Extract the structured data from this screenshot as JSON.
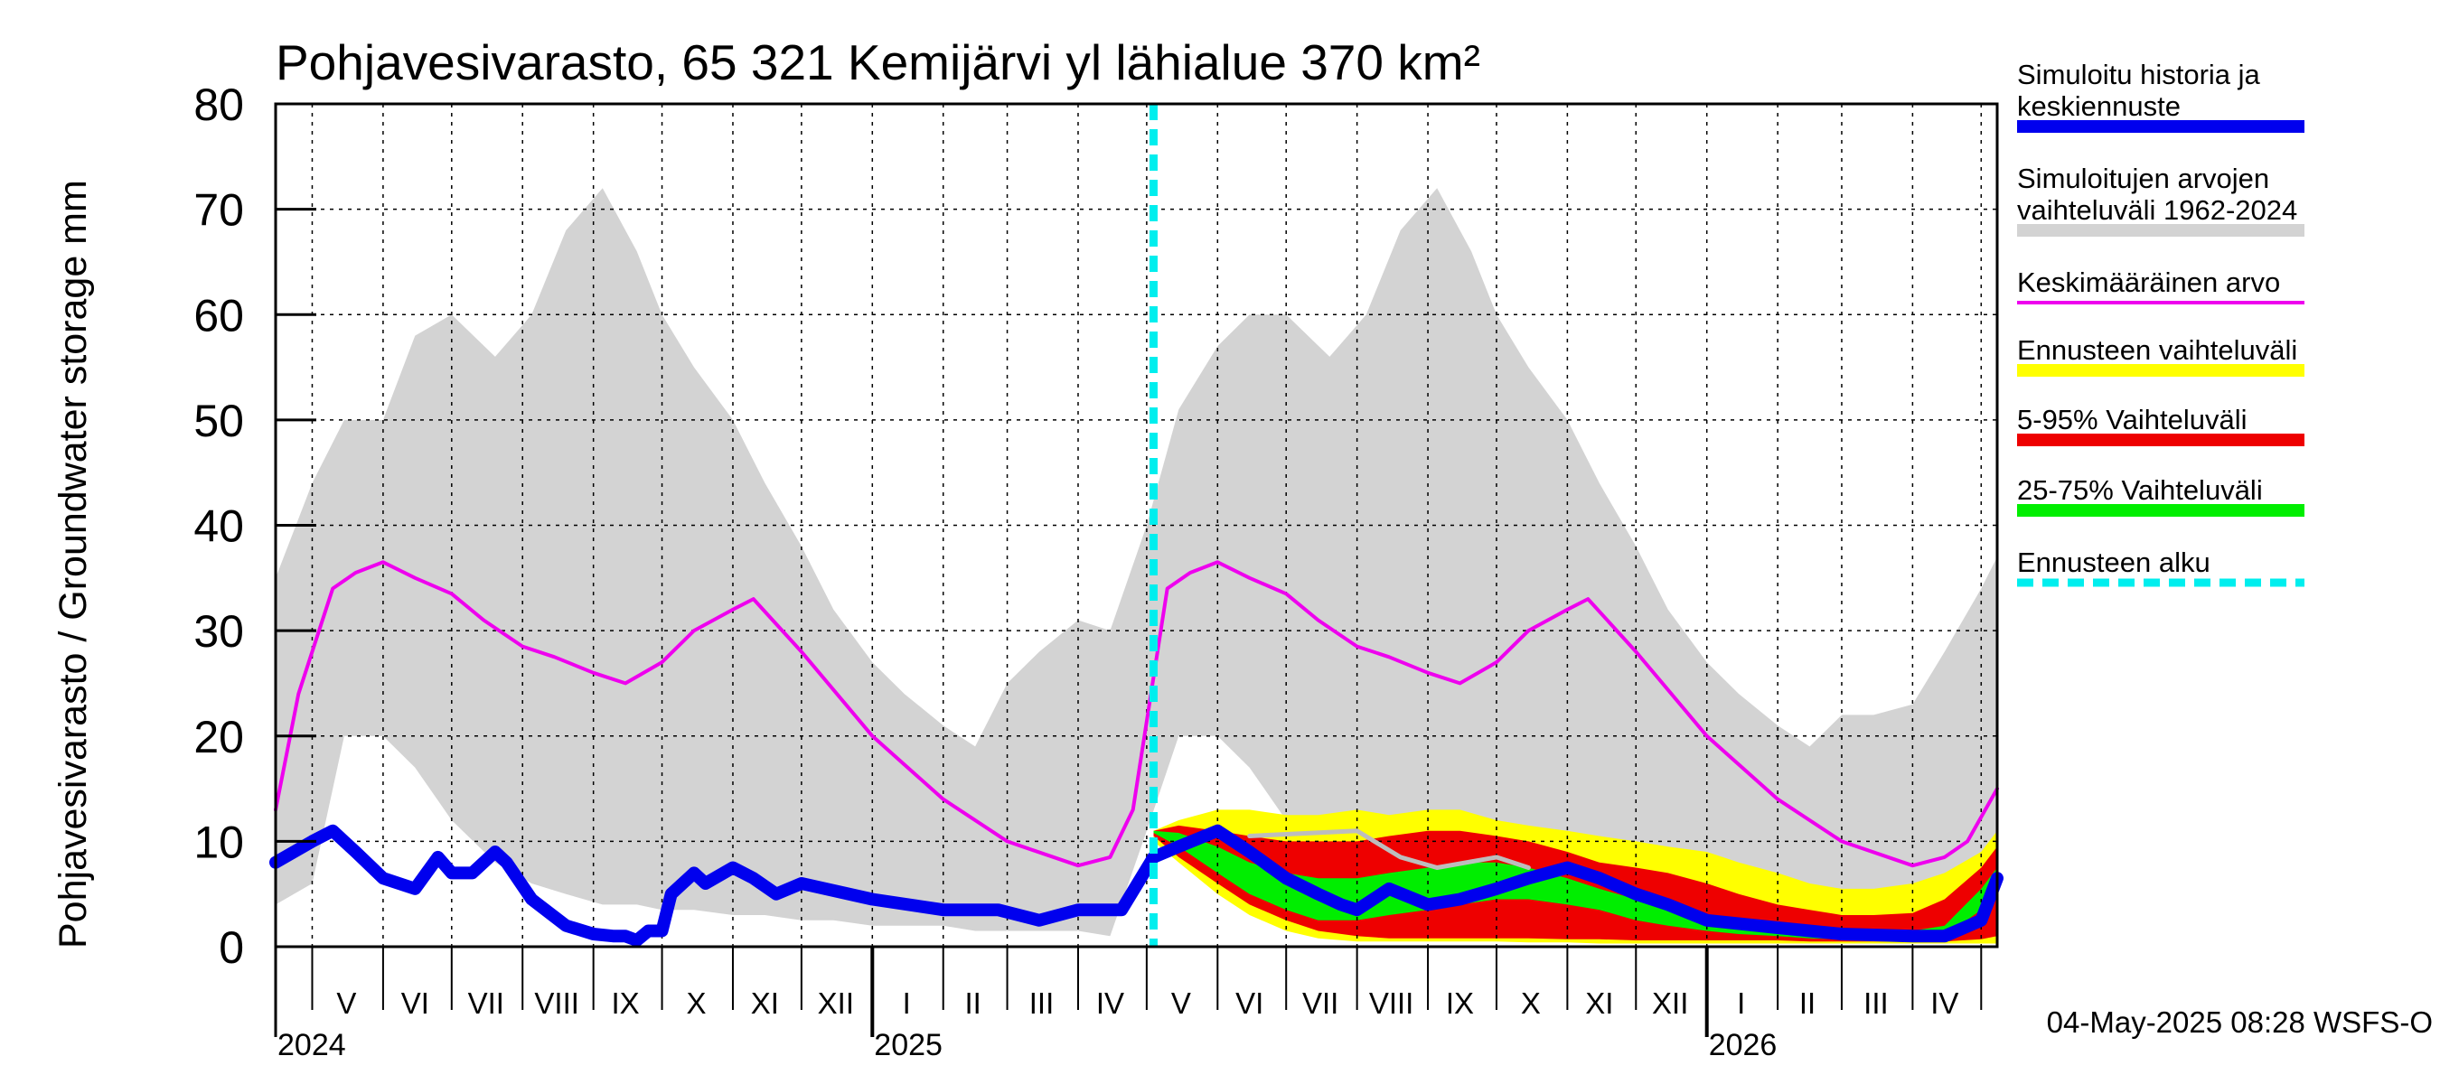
{
  "chart_data": {
    "type": "area",
    "title": "Pohjavesivarasto, 65 321 Kemijärvi yl lähialue 370 km²",
    "ylabel": "Pohjavesivarasto / Groundwater storage   mm",
    "ylim": [
      0,
      80
    ],
    "y_ticks": [
      "0",
      "10",
      "20",
      "30",
      "40",
      "50",
      "60",
      "70",
      "80"
    ],
    "grid": true,
    "legend_position": "right",
    "x_range": [
      "2024-04-15",
      "2026-05-08"
    ],
    "month_labels": [
      {
        "label": "V",
        "date": "2024-05-16"
      },
      {
        "label": "VI",
        "date": "2024-06-15"
      },
      {
        "label": "VII",
        "date": "2024-07-16"
      },
      {
        "label": "VIII",
        "date": "2024-08-16"
      },
      {
        "label": "IX",
        "date": "2024-09-15"
      },
      {
        "label": "X",
        "date": "2024-10-16"
      },
      {
        "label": "XI",
        "date": "2024-11-15"
      },
      {
        "label": "XII",
        "date": "2024-12-16"
      },
      {
        "label": "I",
        "date": "2025-01-16"
      },
      {
        "label": "II",
        "date": "2025-02-14"
      },
      {
        "label": "III",
        "date": "2025-03-16"
      },
      {
        "label": "IV",
        "date": "2025-04-15"
      },
      {
        "label": "V",
        "date": "2025-05-16"
      },
      {
        "label": "VI",
        "date": "2025-06-15"
      },
      {
        "label": "VII",
        "date": "2025-07-16"
      },
      {
        "label": "VIII",
        "date": "2025-08-16"
      },
      {
        "label": "IX",
        "date": "2025-09-15"
      },
      {
        "label": "X",
        "date": "2025-10-16"
      },
      {
        "label": "XI",
        "date": "2025-11-15"
      },
      {
        "label": "XII",
        "date": "2025-12-16"
      },
      {
        "label": "I",
        "date": "2026-01-16"
      },
      {
        "label": "II",
        "date": "2026-02-14"
      },
      {
        "label": "III",
        "date": "2026-03-16"
      },
      {
        "label": "IV",
        "date": "2026-04-15"
      }
    ],
    "year_labels": [
      {
        "label": "2024",
        "date": "2024-04-15"
      },
      {
        "label": "2025",
        "date": "2025-01-01"
      },
      {
        "label": "2026",
        "date": "2026-01-01"
      }
    ],
    "forecast_start": "2025-05-04",
    "legend": [
      {
        "label": "Simuloitu historia ja\nkeskiennuste",
        "color": "#0000ee",
        "style": "thick"
      },
      {
        "label": "Simuloitujen arvojen\nvaihteluväli 1962-2024",
        "color": "#d3d3d3",
        "style": "thick"
      },
      {
        "label": "Keskimääräinen arvo",
        "color": "#ee00ee",
        "style": "thin"
      },
      {
        "label": "Ennusteen vaihteluväli",
        "color": "#ffff00",
        "style": "thick"
      },
      {
        "label": "5-95% Vaihteluväli",
        "color": "#ee0000",
        "style": "thick"
      },
      {
        "label": "25-75% Vaihteluväli",
        "color": "#00ee00",
        "style": "thick"
      },
      {
        "label": "Ennusteen alku",
        "color": "#00eeee",
        "style": "dashed"
      }
    ],
    "series": [
      {
        "name": "Simuloitujen arvojen vaihteluväli 1962-2024",
        "kind": "band",
        "color": "#d3d3d3",
        "x": [
          "2024-04-15",
          "2024-05-01",
          "2024-05-15",
          "2024-06-01",
          "2024-06-15",
          "2024-07-01",
          "2024-07-20",
          "2024-08-05",
          "2024-08-20",
          "2024-09-05",
          "2024-09-20",
          "2024-10-01",
          "2024-10-15",
          "2024-11-01",
          "2024-11-15",
          "2024-12-01",
          "2024-12-15",
          "2025-01-01",
          "2025-01-15",
          "2025-02-01",
          "2025-02-15",
          "2025-03-01",
          "2025-03-15",
          "2025-04-01",
          "2025-04-15",
          "2025-05-01",
          "2025-05-15",
          "2025-06-01",
          "2025-06-15",
          "2025-07-01",
          "2025-07-20",
          "2025-08-05",
          "2025-08-20",
          "2025-09-05",
          "2025-09-20",
          "2025-10-01",
          "2025-10-15",
          "2025-11-01",
          "2025-11-15",
          "2025-12-01",
          "2025-12-15",
          "2026-01-01",
          "2026-01-15",
          "2026-02-01",
          "2026-02-15",
          "2026-03-01",
          "2026-03-15",
          "2026-04-01",
          "2026-04-15",
          "2026-05-01",
          "2026-05-08"
        ],
        "low": [
          4,
          6,
          20,
          20,
          17,
          12,
          8,
          6,
          5,
          4,
          4,
          3.5,
          3.5,
          3,
          3,
          2.5,
          2.5,
          2,
          2,
          2,
          1.5,
          1.5,
          1.5,
          1.5,
          1,
          11,
          20,
          20,
          17,
          12,
          8,
          6,
          5,
          4,
          4,
          3.5,
          3.5,
          3,
          3,
          2.5,
          2.5,
          2,
          2,
          2,
          1.5,
          1.5,
          1.5,
          1.5,
          1,
          2,
          2
        ],
        "high": [
          35,
          44,
          50,
          50,
          58,
          60,
          56,
          60,
          68,
          72,
          66,
          60,
          55,
          50,
          44,
          38,
          32,
          27,
          24,
          21,
          19,
          25,
          28,
          31,
          30,
          40,
          51,
          57,
          60,
          60,
          56,
          60,
          68,
          72,
          66,
          60,
          55,
          50,
          44,
          38,
          32,
          27,
          24,
          21,
          19,
          22,
          22,
          23,
          28,
          34,
          37
        ]
      },
      {
        "name": "Ennusteen vaihteluväli",
        "kind": "band",
        "color": "#ffff00",
        "x": [
          "2025-05-04",
          "2025-05-15",
          "2025-06-01",
          "2025-06-15",
          "2025-07-01",
          "2025-07-15",
          "2025-08-01",
          "2025-08-15",
          "2025-09-01",
          "2025-09-15",
          "2025-10-01",
          "2025-10-15",
          "2025-11-01",
          "2025-11-15",
          "2025-12-01",
          "2025-12-15",
          "2026-01-01",
          "2026-01-15",
          "2026-02-01",
          "2026-02-15",
          "2026-03-01",
          "2026-03-15",
          "2026-04-01",
          "2026-04-15",
          "2026-05-01",
          "2026-05-08"
        ],
        "low": [
          10,
          8,
          5,
          3,
          1.5,
          0.8,
          0.5,
          0.5,
          0.5,
          0.5,
          0.5,
          0.4,
          0.4,
          0.3,
          0.3,
          0.3,
          0.3,
          0.3,
          0.3,
          0.3,
          0.3,
          0.3,
          0.3,
          0.3,
          0.3,
          0.3
        ],
        "high": [
          11,
          12,
          13,
          13,
          12.5,
          12.5,
          13,
          12.5,
          13,
          13,
          12,
          11.5,
          11,
          10.5,
          10,
          9.5,
          9,
          8,
          7,
          6,
          5.5,
          5.5,
          6,
          7,
          9,
          11
        ]
      },
      {
        "name": "5-95% Vaihteluväli",
        "kind": "band",
        "color": "#ee0000",
        "x": [
          "2025-05-04",
          "2025-05-15",
          "2025-06-01",
          "2025-06-15",
          "2025-07-01",
          "2025-07-15",
          "2025-08-01",
          "2025-08-15",
          "2025-09-01",
          "2025-09-15",
          "2025-10-01",
          "2025-10-15",
          "2025-11-01",
          "2025-11-15",
          "2025-12-01",
          "2025-12-15",
          "2026-01-01",
          "2026-01-15",
          "2026-02-01",
          "2026-02-15",
          "2026-03-01",
          "2026-03-15",
          "2026-04-01",
          "2026-04-15",
          "2026-05-01",
          "2026-05-08"
        ],
        "low": [
          10.5,
          8.5,
          6,
          4,
          2.5,
          1.5,
          1,
          0.8,
          0.8,
          0.8,
          0.8,
          0.8,
          0.7,
          0.7,
          0.6,
          0.6,
          0.6,
          0.6,
          0.6,
          0.5,
          0.5,
          0.5,
          0.5,
          0.5,
          0.7,
          1
        ],
        "high": [
          11,
          11.5,
          11,
          10.5,
          10,
          10,
          10,
          10.5,
          11,
          11,
          10.5,
          10,
          9,
          8,
          7.5,
          7,
          6,
          5,
          4,
          3.5,
          3,
          3,
          3.2,
          4.5,
          7.5,
          9.5
        ]
      },
      {
        "name": "25-75% Vaihteluväli",
        "kind": "band",
        "color": "#00ee00",
        "x": [
          "2025-05-04",
          "2025-05-15",
          "2025-06-01",
          "2025-06-15",
          "2025-07-01",
          "2025-07-15",
          "2025-08-01",
          "2025-08-15",
          "2025-09-01",
          "2025-09-15",
          "2025-10-01",
          "2025-10-15",
          "2025-11-01",
          "2025-11-15",
          "2025-12-01",
          "2025-12-15",
          "2026-01-01",
          "2026-01-15",
          "2026-02-01",
          "2026-02-15",
          "2026-03-01",
          "2026-03-15",
          "2026-04-01",
          "2026-04-15",
          "2026-05-01",
          "2026-05-08"
        ],
        "low": [
          10.8,
          9.5,
          7,
          5,
          3.5,
          2.5,
          2.5,
          3,
          3.5,
          4,
          4.5,
          4.5,
          4,
          3.5,
          2.5,
          2,
          1.5,
          1.2,
          1,
          0.8,
          0.7,
          0.7,
          0.8,
          1,
          3.5,
          5.5
        ],
        "high": [
          11,
          10.8,
          9.5,
          8,
          7,
          6.5,
          6.5,
          7,
          7.5,
          8,
          8,
          7.5,
          6.5,
          5.5,
          4.5,
          3.5,
          3,
          2.5,
          2,
          1.8,
          1.6,
          1.5,
          1.5,
          2,
          5.5,
          7.5
        ]
      },
      {
        "name": "Keskimääräinen arvo",
        "kind": "line",
        "color": "#ee00ee",
        "x": [
          "2024-04-15",
          "2024-04-25",
          "2024-05-10",
          "2024-05-20",
          "2024-06-01",
          "2024-06-15",
          "2024-07-01",
          "2024-07-15",
          "2024-08-01",
          "2024-08-15",
          "2024-09-01",
          "2024-09-15",
          "2024-10-01",
          "2024-10-15",
          "2024-11-01",
          "2024-11-10",
          "2024-12-01",
          "2025-01-01",
          "2025-02-01",
          "2025-03-01",
          "2025-04-01",
          "2025-04-15",
          "2025-04-25",
          "2025-05-10",
          "2025-05-20",
          "2025-06-01",
          "2025-06-15",
          "2025-07-01",
          "2025-07-15",
          "2025-08-01",
          "2025-08-15",
          "2025-09-01",
          "2025-09-15",
          "2025-10-01",
          "2025-10-15",
          "2025-11-01",
          "2025-11-10",
          "2025-12-01",
          "2026-01-01",
          "2026-02-01",
          "2026-03-01",
          "2026-04-01",
          "2026-04-15",
          "2026-04-25",
          "2026-05-08"
        ],
        "y": [
          13,
          24,
          34,
          35.5,
          36.5,
          35,
          33.5,
          31,
          28.5,
          27.5,
          26,
          25,
          27,
          30,
          32,
          33,
          28,
          20,
          14,
          10,
          7.7,
          8.5,
          13,
          34,
          35.5,
          36.5,
          35,
          33.5,
          31,
          28.5,
          27.5,
          26,
          25,
          27,
          30,
          32,
          33,
          28,
          20,
          14,
          10,
          7.7,
          8.5,
          10,
          15
        ]
      },
      {
        "name": "Simuloitu historia ja keskiennuste",
        "kind": "line",
        "color": "#0000ee",
        "x": [
          "2024-04-15",
          "2024-05-01",
          "2024-05-10",
          "2024-05-20",
          "2024-06-01",
          "2024-06-15",
          "2024-06-25",
          "2024-07-01",
          "2024-07-10",
          "2024-07-20",
          "2024-07-25",
          "2024-08-05",
          "2024-08-20",
          "2024-09-01",
          "2024-09-10",
          "2024-09-15",
          "2024-09-20",
          "2024-09-25",
          "2024-10-01",
          "2024-10-05",
          "2024-10-15",
          "2024-10-20",
          "2024-11-01",
          "2024-11-10",
          "2024-11-20",
          "2024-12-01",
          "2025-01-01",
          "2025-02-01",
          "2025-02-25",
          "2025-03-15",
          "2025-04-01",
          "2025-04-20",
          "2025-05-04",
          "2025-05-15",
          "2025-06-01",
          "2025-06-15",
          "2025-07-01",
          "2025-07-15",
          "2025-07-25",
          "2025-08-01",
          "2025-08-15",
          "2025-09-01",
          "2025-09-15",
          "2025-10-01",
          "2025-10-15",
          "2025-11-01",
          "2025-11-15",
          "2025-12-01",
          "2025-12-15",
          "2026-01-01",
          "2026-02-01",
          "2026-03-01",
          "2026-04-01",
          "2026-04-15",
          "2026-05-01",
          "2026-05-08"
        ],
        "y": [
          8,
          10,
          11,
          9,
          6.5,
          5.5,
          8.5,
          7,
          7,
          9,
          8,
          4.5,
          2,
          1.2,
          1,
          1,
          0.6,
          1.5,
          1.5,
          5,
          7,
          6,
          7.5,
          6.5,
          5,
          6,
          4.5,
          3.5,
          3.5,
          2.5,
          3.5,
          3.5,
          8.5,
          9.5,
          11,
          9,
          6.5,
          5,
          4,
          3.5,
          5.5,
          4,
          4.5,
          5.5,
          6.5,
          7.5,
          6.5,
          5,
          4,
          2.5,
          1.8,
          1.2,
          1,
          1,
          2.5,
          6.5
        ]
      },
      {
        "name": "grey_trace",
        "kind": "line",
        "color": "#bdbdbd",
        "x": [
          "2025-06-15",
          "2025-08-01",
          "2025-08-20",
          "2025-09-05",
          "2025-10-01",
          "2025-10-15"
        ],
        "y": [
          10.5,
          11,
          8.5,
          7.5,
          8.5,
          7.5
        ]
      }
    ]
  },
  "timestamp": "04-May-2025 08:28 WSFS-O"
}
